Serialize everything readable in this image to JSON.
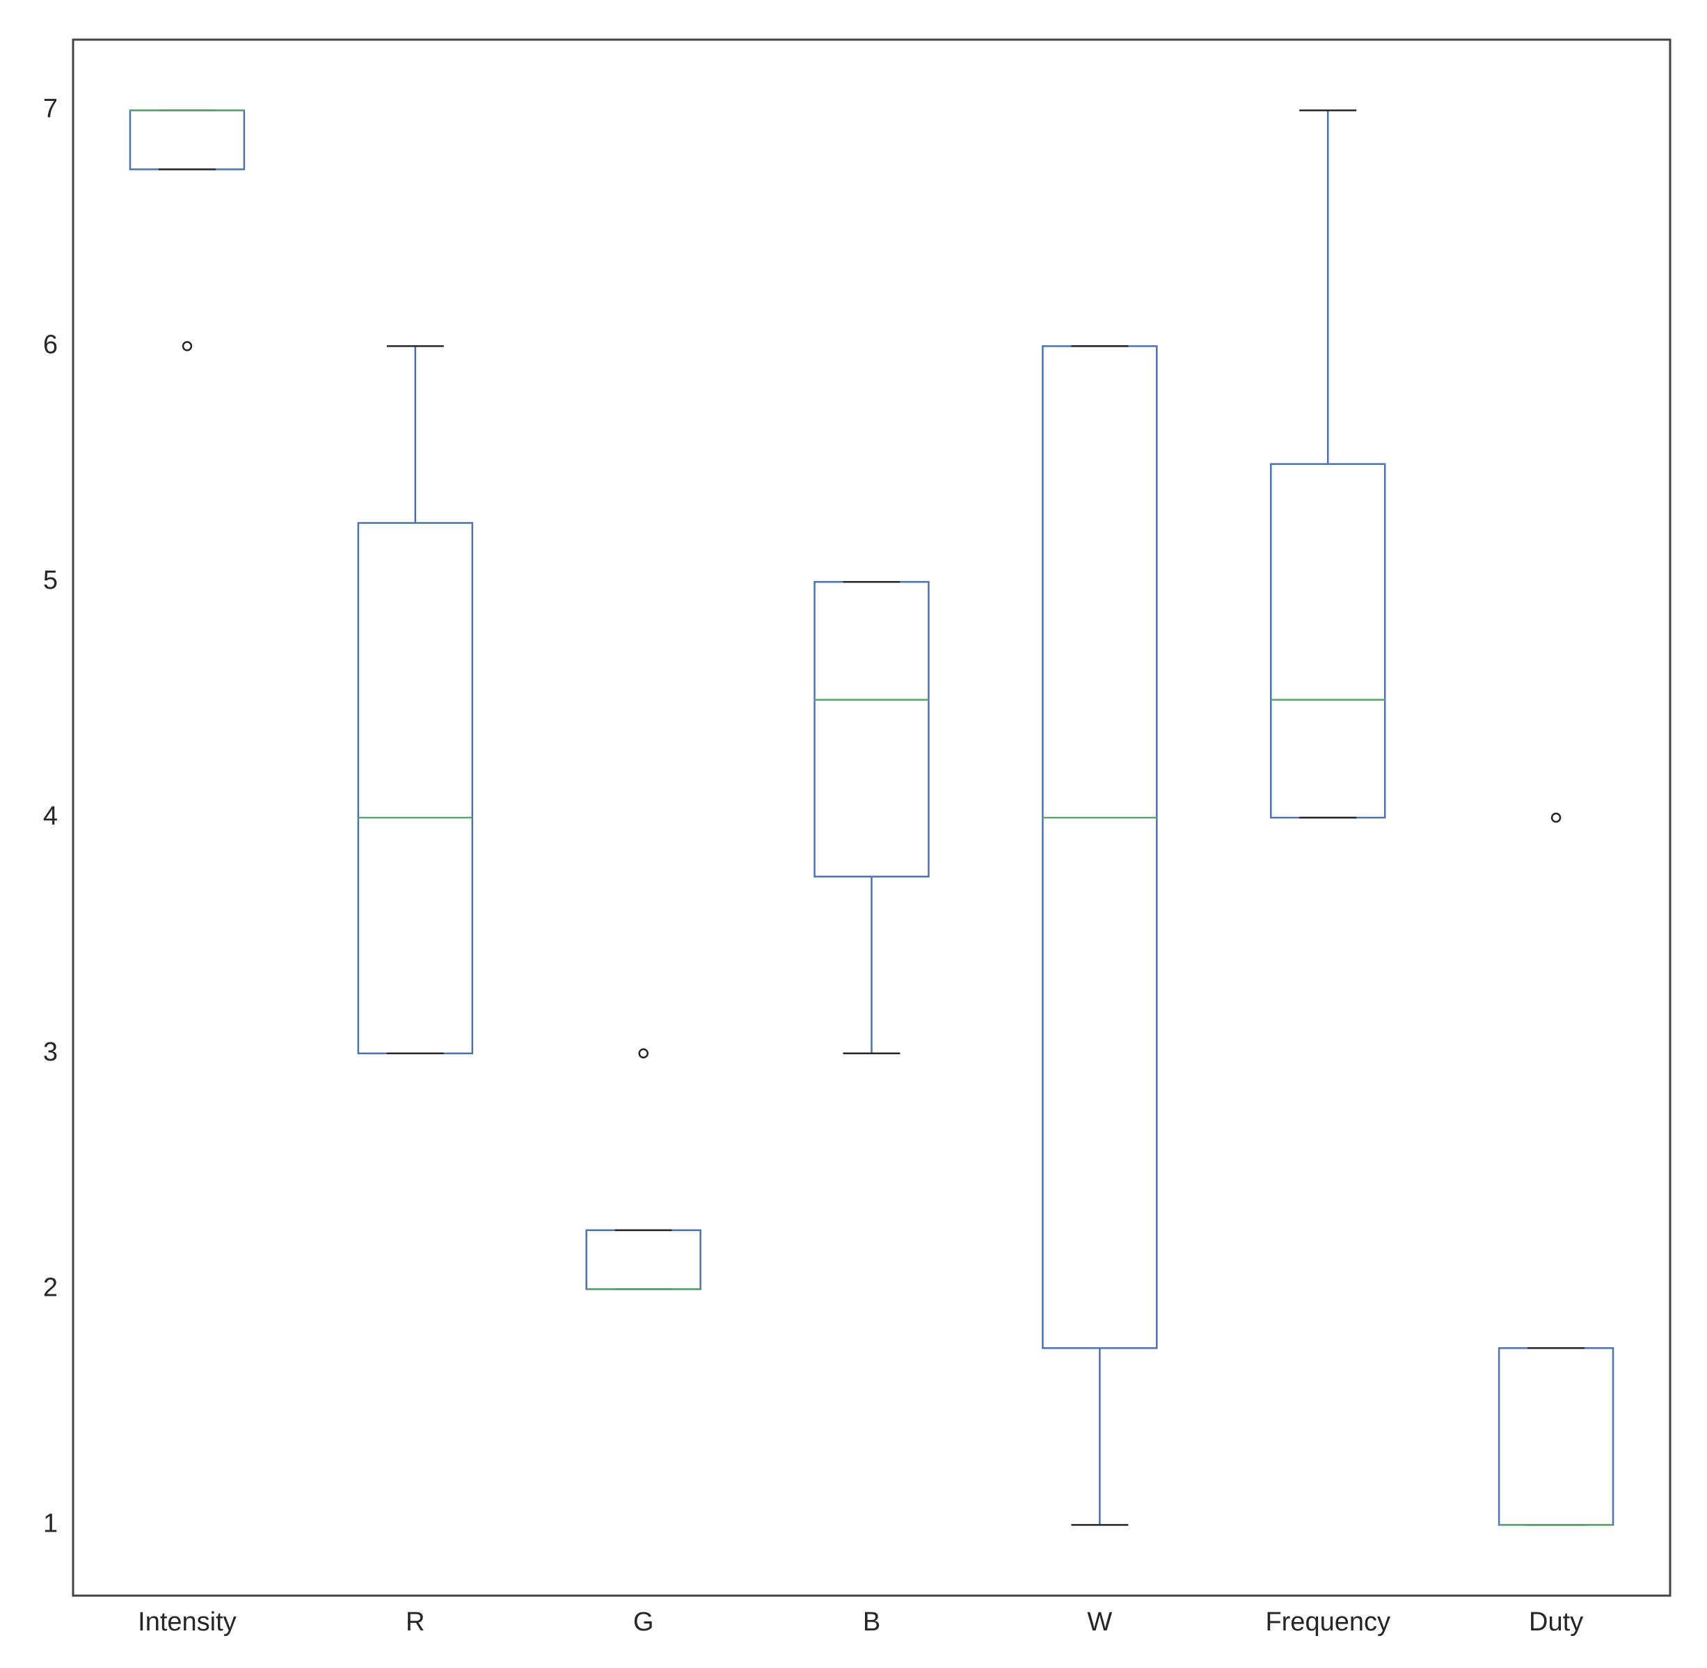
{
  "chart_data": {
    "type": "box",
    "title": "",
    "xlabel": "",
    "ylabel": "",
    "ylim": [
      0.7,
      7.3
    ],
    "yticks": [
      1,
      2,
      3,
      4,
      5,
      6,
      7
    ],
    "grid": false,
    "categories": [
      "Intensity",
      "R",
      "G",
      "B",
      "W",
      "Frequency",
      "Duty"
    ],
    "boxes": [
      {
        "label": "Intensity",
        "whislo": 6.75,
        "q1": 6.75,
        "med": 7,
        "q3": 7,
        "whishi": 7,
        "fliers": [
          6
        ]
      },
      {
        "label": "R",
        "whislo": 3,
        "q1": 3,
        "med": 4,
        "q3": 5.25,
        "whishi": 6,
        "fliers": []
      },
      {
        "label": "G",
        "whislo": 2,
        "q1": 2,
        "med": 2,
        "q3": 2.25,
        "whishi": 2.25,
        "fliers": [
          3
        ]
      },
      {
        "label": "B",
        "whislo": 3,
        "q1": 3.75,
        "med": 4.5,
        "q3": 5,
        "whishi": 5,
        "fliers": []
      },
      {
        "label": "W",
        "whislo": 1,
        "q1": 1.75,
        "med": 4,
        "q3": 6,
        "whishi": 6,
        "fliers": []
      },
      {
        "label": "Frequency",
        "whislo": 4,
        "q1": 4,
        "med": 4.5,
        "q3": 5.5,
        "whishi": 7,
        "fliers": []
      },
      {
        "label": "Duty",
        "whislo": 1,
        "q1": 1,
        "med": 1,
        "q3": 1.75,
        "whishi": 1.75,
        "fliers": [
          4
        ]
      }
    ],
    "colors": {
      "box": "#4c72b0",
      "median": "#55a868",
      "cap": "#262626",
      "flier": "#262626",
      "axes": "#444444"
    }
  }
}
